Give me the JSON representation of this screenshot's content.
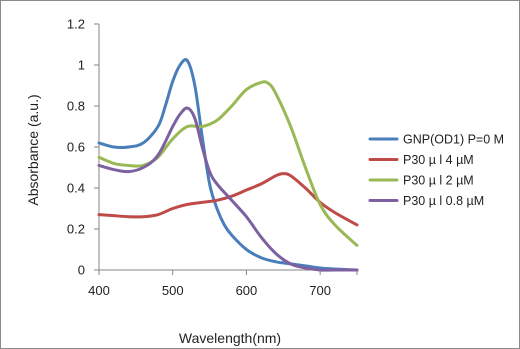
{
  "chart_data": {
    "type": "line",
    "title": "",
    "xlabel": "Wavelength(nm)",
    "ylabel": "Absorbance (a.u.)",
    "xlim": [
      400,
      750
    ],
    "ylim": [
      0,
      1.2
    ],
    "xticks": [
      400,
      500,
      600,
      700
    ],
    "yticks": [
      0,
      0.2,
      0.4,
      0.6,
      0.8,
      1,
      1.2
    ],
    "xtick_labels": [
      "400",
      "500",
      "600",
      "700"
    ],
    "ytick_labels": [
      "0",
      "0.2",
      "0.4",
      "0.6",
      "0.8",
      "1",
      "1.2"
    ],
    "grid": false,
    "legend_position": "right",
    "series": [
      {
        "name": "GNP(OD1) P=0 M",
        "color": "#4a7ebb",
        "x": [
          400,
          420,
          440,
          460,
          480,
          490,
          500,
          510,
          520,
          530,
          540,
          550,
          560,
          570,
          580,
          600,
          620,
          640,
          660,
          680,
          700,
          720,
          750
        ],
        "y": [
          0.62,
          0.6,
          0.6,
          0.62,
          0.7,
          0.8,
          0.92,
          1.0,
          1.02,
          0.9,
          0.65,
          0.42,
          0.3,
          0.22,
          0.17,
          0.1,
          0.06,
          0.04,
          0.03,
          0.02,
          0.01,
          0.005,
          0.0
        ]
      },
      {
        "name": "P30 µ l 4 µM",
        "color": "#be4b48",
        "x": [
          400,
          420,
          440,
          460,
          480,
          500,
          520,
          540,
          560,
          580,
          600,
          620,
          640,
          650,
          660,
          680,
          700,
          720,
          750
        ],
        "y": [
          0.27,
          0.265,
          0.26,
          0.26,
          0.27,
          0.3,
          0.32,
          0.33,
          0.34,
          0.36,
          0.39,
          0.42,
          0.46,
          0.47,
          0.46,
          0.4,
          0.33,
          0.28,
          0.22
        ]
      },
      {
        "name": "P30 µ l 2 µM",
        "color": "#98b954",
        "x": [
          400,
          420,
          440,
          460,
          480,
          500,
          520,
          540,
          560,
          580,
          600,
          620,
          630,
          640,
          660,
          680,
          700,
          720,
          750
        ],
        "y": [
          0.55,
          0.52,
          0.51,
          0.51,
          0.55,
          0.64,
          0.7,
          0.7,
          0.73,
          0.8,
          0.88,
          0.915,
          0.91,
          0.86,
          0.7,
          0.5,
          0.32,
          0.22,
          0.12
        ]
      },
      {
        "name": "P30 µ l 0.8 µM",
        "color": "#7d60a0",
        "x": [
          400,
          420,
          440,
          460,
          480,
          500,
          510,
          520,
          530,
          540,
          550,
          560,
          580,
          600,
          620,
          640,
          660,
          680,
          700,
          720,
          750
        ],
        "y": [
          0.51,
          0.49,
          0.48,
          0.5,
          0.56,
          0.7,
          0.76,
          0.79,
          0.74,
          0.6,
          0.48,
          0.42,
          0.34,
          0.26,
          0.16,
          0.08,
          0.03,
          0.01,
          0.0,
          -0.01,
          -0.02
        ]
      }
    ]
  }
}
